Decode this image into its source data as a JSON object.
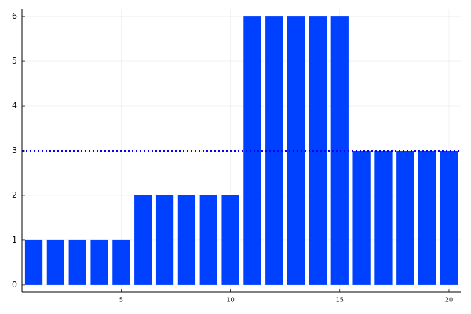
{
  "chart_data": {
    "type": "bar",
    "x": [
      1,
      2,
      3,
      4,
      5,
      6,
      7,
      8,
      9,
      10,
      11,
      12,
      13,
      14,
      15,
      16,
      17,
      18,
      19,
      20
    ],
    "values": [
      1,
      1,
      1,
      1,
      1,
      2,
      2,
      2,
      2,
      2,
      6,
      6,
      6,
      6,
      6,
      3,
      3,
      3,
      3,
      3
    ],
    "color": "#0040ff",
    "bar_width": 0.8,
    "xlim": [
      0.46,
      20.54
    ],
    "xticks": [
      5,
      10,
      15,
      20
    ],
    "ylim": [
      -0.16,
      6.16
    ],
    "yticks": [
      0,
      1,
      2,
      3,
      4,
      5,
      6
    ],
    "grid": true,
    "hline": {
      "value": 3,
      "color": "#0000ff",
      "style": "dotted"
    }
  }
}
